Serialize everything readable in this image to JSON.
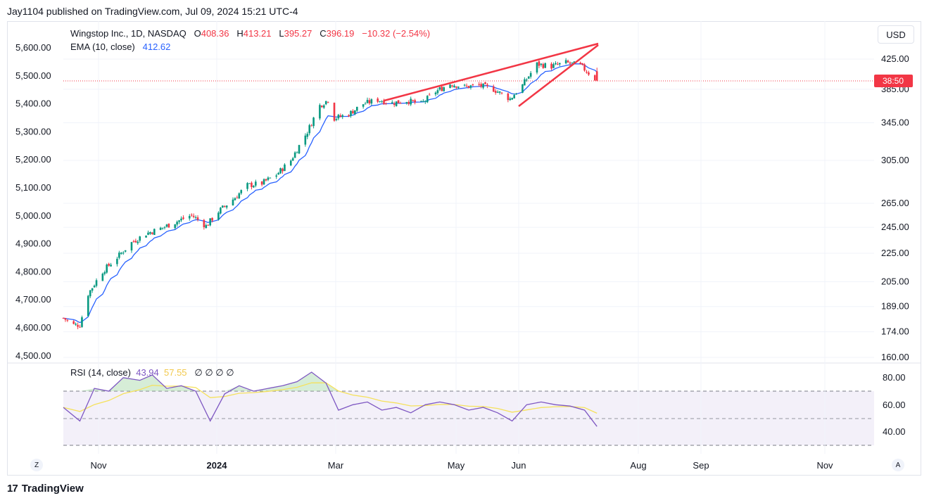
{
  "header": {
    "text": "Jay1104 published on TradingView.com, Jul 09, 2024 15:21 UTC-4"
  },
  "legend": {
    "symbol": "Wingstop Inc., 1D, NASDAQ",
    "open_label": "O",
    "open": "408.36",
    "high_label": "H",
    "high": "413.21",
    "low_label": "L",
    "low": "395.27",
    "close_label": "C",
    "close": "396.19",
    "change": "−10.32 (−2.54%)",
    "ema_label": "EMA (10, close)",
    "ema_value": "412.62"
  },
  "rsi_legend": {
    "label": "RSI (14, close)",
    "value": "43.94",
    "ma": "57.55",
    "icons": "∅ ∅ ∅ ∅"
  },
  "currency": "USD",
  "price_tag": "38:50",
  "colors": {
    "up": "#089981",
    "down": "#f23645",
    "ema": "#2962ff",
    "rsi": "#7e57c2",
    "rsi_ma": "#f5e15c",
    "wedge": "#f23645"
  },
  "footer": {
    "brand": "TradingView",
    "logo": "17"
  },
  "buttons": {
    "left": "Z",
    "right": "A"
  },
  "chart_data": {
    "type": "candlestick",
    "left_axis_ticks": [
      "5,600.00",
      "5,500.00",
      "5,400.00",
      "5,300.00",
      "5,200.00",
      "5,100.00",
      "5,000.00",
      "4,900.00",
      "4,800.00",
      "4,700.00",
      "4,600.00",
      "4,500.00"
    ],
    "right_axis_ticks": [
      "425.00",
      "385.00",
      "345.00",
      "305.00",
      "265.00",
      "245.00",
      "225.00",
      "205.00",
      "189.00",
      "174.00",
      "160.00"
    ],
    "right_axis_scale": "log",
    "rsi_ticks": [
      "80.00",
      "60.00",
      "40.00"
    ],
    "x_ticks": [
      "Nov",
      "2024",
      "Mar",
      "May",
      "Jun",
      "Aug",
      "Sep",
      "Nov"
    ],
    "price_path": [
      [
        "2023-10-25",
        182
      ],
      [
        "2023-10-30",
        178
      ],
      [
        "2023-11-02",
        178
      ],
      [
        "2023-11-06",
        197
      ],
      [
        "2023-11-13",
        212
      ],
      [
        "2023-11-20",
        222
      ],
      [
        "2023-11-27",
        233
      ],
      [
        "2023-12-04",
        240
      ],
      [
        "2023-12-11",
        244
      ],
      [
        "2023-12-18",
        249
      ],
      [
        "2023-12-26",
        255
      ],
      [
        "2024-01-02",
        246
      ],
      [
        "2024-01-08",
        258
      ],
      [
        "2024-01-16",
        270
      ],
      [
        "2024-01-22",
        281
      ],
      [
        "2024-01-29",
        283
      ],
      [
        "2024-02-05",
        291
      ],
      [
        "2024-02-12",
        305
      ],
      [
        "2024-02-20",
        335
      ],
      [
        "2024-02-26",
        365
      ],
      [
        "2024-03-01",
        372
      ],
      [
        "2024-03-04",
        350
      ],
      [
        "2024-03-11",
        355
      ],
      [
        "2024-03-18",
        367
      ],
      [
        "2024-03-25",
        372
      ],
      [
        "2024-04-01",
        368
      ],
      [
        "2024-04-08",
        371
      ],
      [
        "2024-04-15",
        367
      ],
      [
        "2024-04-22",
        382
      ],
      [
        "2024-04-29",
        392
      ],
      [
        "2024-05-06",
        388
      ],
      [
        "2024-05-13",
        390
      ],
      [
        "2024-05-20",
        385
      ],
      [
        "2024-05-28",
        373
      ],
      [
        "2024-06-03",
        390
      ],
      [
        "2024-06-10",
        418
      ],
      [
        "2024-06-17",
        415
      ],
      [
        "2024-06-24",
        420
      ],
      [
        "2024-07-01",
        416
      ],
      [
        "2024-07-09",
        396
      ]
    ],
    "ema_10_last": 412.62,
    "rsi_path": [
      [
        "2023-10-25",
        58
      ],
      [
        "2023-11-02",
        48
      ],
      [
        "2023-11-09",
        72
      ],
      [
        "2023-11-16",
        70
      ],
      [
        "2023-11-23",
        80
      ],
      [
        "2023-12-01",
        78
      ],
      [
        "2023-12-07",
        82
      ],
      [
        "2023-12-14",
        72
      ],
      [
        "2023-12-21",
        74
      ],
      [
        "2023-12-28",
        70
      ],
      [
        "2024-01-04",
        48
      ],
      [
        "2024-01-11",
        68
      ],
      [
        "2024-01-18",
        74
      ],
      [
        "2024-01-25",
        70
      ],
      [
        "2024-02-01",
        72
      ],
      [
        "2024-02-08",
        74
      ],
      [
        "2024-02-15",
        77
      ],
      [
        "2024-02-22",
        84
      ],
      [
        "2024-02-29",
        76
      ],
      [
        "2024-03-06",
        56
      ],
      [
        "2024-03-13",
        60
      ],
      [
        "2024-03-20",
        62
      ],
      [
        "2024-03-27",
        56
      ],
      [
        "2024-04-03",
        58
      ],
      [
        "2024-04-10",
        54
      ],
      [
        "2024-04-17",
        60
      ],
      [
        "2024-04-24",
        62
      ],
      [
        "2024-05-01",
        60
      ],
      [
        "2024-05-08",
        56
      ],
      [
        "2024-05-15",
        58
      ],
      [
        "2024-05-22",
        54
      ],
      [
        "2024-05-29",
        48
      ],
      [
        "2024-06-05",
        60
      ],
      [
        "2024-06-12",
        62
      ],
      [
        "2024-06-19",
        60
      ],
      [
        "2024-06-26",
        59
      ],
      [
        "2024-07-03",
        56
      ],
      [
        "2024-07-09",
        43.94
      ]
    ],
    "rsi_last": 43.94,
    "rsi_ma_last": 57.55,
    "rsi_bands": [
      30,
      50,
      70
    ],
    "annotation": "rising wedge"
  }
}
